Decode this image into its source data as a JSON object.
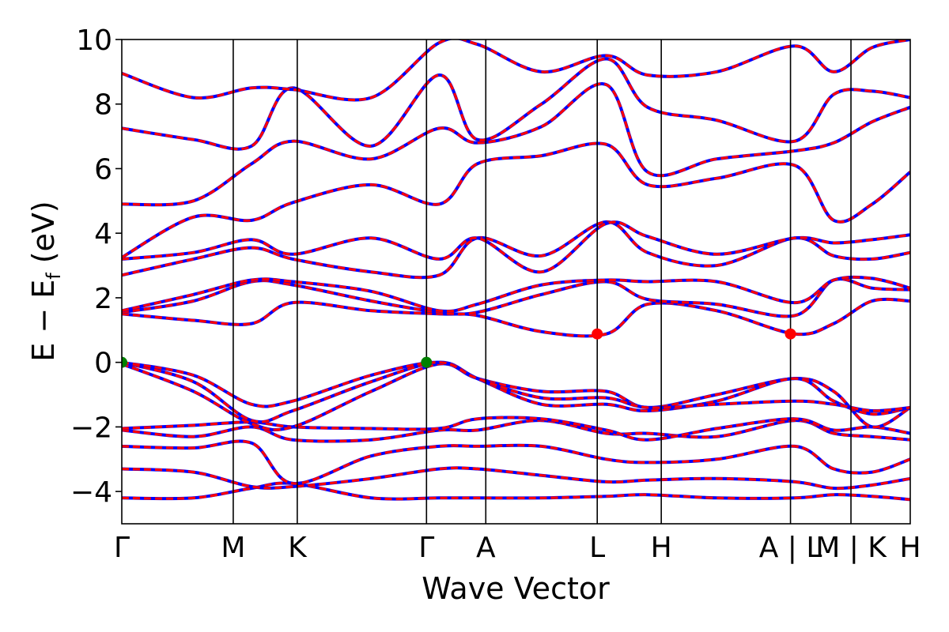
{
  "chart_data": {
    "type": "line",
    "xlabel": "Wave Vector",
    "ylabel": {
      "main": "E − E",
      "subscript": "f",
      "unit": "(eV)"
    },
    "xlim": [
      0,
      6.65
    ],
    "ylim": [
      -5,
      10
    ],
    "y_ticks": [
      -4,
      -2,
      0,
      2,
      4,
      6,
      8,
      10
    ],
    "y_tick_labels": [
      "−4",
      "−2",
      "0",
      "2",
      "4",
      "6",
      "8",
      "10"
    ],
    "k_points": [
      {
        "label": "Γ",
        "x": 0.0
      },
      {
        "label": "M",
        "x": 0.94
      },
      {
        "label": "K",
        "x": 1.48
      },
      {
        "label": "Γ",
        "x": 2.57
      },
      {
        "label": "A",
        "x": 3.07
      },
      {
        "label": "L",
        "x": 4.01
      },
      {
        "label": "H",
        "x": 4.55
      },
      {
        "label": "A | L",
        "x": 5.64
      },
      {
        "label": "M | K",
        "x": 6.15
      },
      {
        "label": "H",
        "x": 6.65
      }
    ],
    "colors": {
      "band": "#ff0000",
      "overlay": "#0000ff",
      "vbm": "#008000",
      "cbm": "#ff0000",
      "kline": "#000000"
    },
    "markers": [
      {
        "name": "VBM",
        "x": 0.0,
        "y": 0.0,
        "color": "#008000"
      },
      {
        "name": "VBM",
        "x": 2.57,
        "y": 0.0,
        "color": "#008000"
      },
      {
        "name": "CBM",
        "x": 4.01,
        "y": 0.88,
        "color": "#ff0000"
      },
      {
        "name": "CBM",
        "x": 5.64,
        "y": 0.88,
        "color": "#ff0000"
      }
    ],
    "bands": [
      [
        -4.2,
        -4.2,
        -3.9,
        -3.75,
        -4.2,
        -4.2,
        -4.2,
        -4.2,
        -4.15,
        -4.1,
        -4.2,
        -4.2,
        -4.1,
        -4.15,
        -4.25
      ],
      [
        -3.3,
        -3.4,
        -3.85,
        -3.85,
        -3.6,
        -3.3,
        -3.3,
        -3.5,
        -3.7,
        -3.65,
        -3.6,
        -3.7,
        -3.9,
        -3.8,
        -3.6
      ],
      [
        -2.6,
        -2.65,
        -2.5,
        -3.75,
        -2.9,
        -2.6,
        -2.6,
        -2.6,
        -3.0,
        -3.1,
        -3.0,
        -2.6,
        -3.3,
        -3.4,
        -3.0
      ],
      [
        -2.1,
        -2.3,
        -2.0,
        -2.4,
        -2.4,
        -2.1,
        -2.1,
        -1.8,
        -2.2,
        -2.2,
        -2.3,
        -1.8,
        -2.2,
        -2.3,
        -2.4
      ],
      [
        -2.05,
        -1.95,
        -1.85,
        -2.0,
        -2.05,
        -2.05,
        -1.75,
        -1.75,
        -2.1,
        -2.4,
        -2.05,
        -1.75,
        -2.1,
        -2.0,
        -2.2
      ],
      [
        -0.05,
        -0.9,
        -1.9,
        -2.0,
        -0.9,
        -0.05,
        -0.5,
        -0.9,
        -0.9,
        -1.4,
        -1.0,
        -0.5,
        -0.9,
        -2.0,
        -1.4
      ],
      [
        0.0,
        -0.6,
        -1.8,
        -1.5,
        -0.6,
        0.0,
        -0.5,
        -1.3,
        -1.3,
        -1.5,
        -1.2,
        -0.5,
        -1.2,
        -1.6,
        -1.4
      ],
      [
        0.0,
        -0.4,
        -1.3,
        -1.2,
        -0.4,
        0.0,
        -0.5,
        -1.1,
        -1.1,
        -1.4,
        -1.3,
        -1.2,
        -1.3,
        -1.5,
        -1.4
      ],
      [
        1.5,
        1.3,
        1.2,
        1.85,
        1.6,
        1.5,
        1.45,
        0.95,
        0.88,
        1.8,
        1.6,
        0.88,
        1.2,
        1.9,
        1.9
      ],
      [
        1.55,
        1.9,
        2.5,
        2.4,
        1.9,
        1.55,
        1.55,
        2.1,
        2.5,
        1.95,
        1.8,
        1.45,
        2.55,
        2.3,
        2.25
      ],
      [
        1.6,
        2.1,
        2.55,
        2.5,
        2.2,
        1.6,
        1.8,
        2.4,
        2.55,
        2.5,
        2.5,
        1.85,
        2.55,
        2.6,
        2.3
      ],
      [
        2.7,
        3.2,
        3.55,
        3.2,
        2.8,
        2.7,
        3.85,
        3.3,
        4.35,
        3.4,
        3.0,
        3.85,
        3.3,
        3.2,
        3.4
      ],
      [
        3.2,
        3.4,
        3.8,
        3.35,
        3.85,
        3.2,
        3.85,
        2.8,
        4.3,
        3.9,
        3.35,
        3.85,
        3.7,
        3.8,
        3.95
      ],
      [
        3.25,
        4.5,
        4.4,
        4.95,
        5.5,
        4.9,
        6.15,
        6.4,
        6.75,
        5.5,
        5.7,
        6.1,
        4.4,
        4.9,
        5.9
      ],
      [
        4.9,
        5.0,
        6.15,
        6.85,
        6.3,
        7.25,
        6.8,
        7.3,
        8.6,
        5.9,
        6.3,
        6.55,
        6.8,
        7.45,
        7.9
      ],
      [
        7.25,
        6.9,
        6.7,
        8.5,
        6.7,
        8.9,
        6.9,
        8.0,
        9.4,
        7.9,
        7.5,
        6.85,
        8.3,
        8.4,
        8.2
      ],
      [
        8.95,
        8.2,
        8.5,
        8.45,
        8.2,
        9.9,
        9.85,
        9.0,
        9.5,
        8.9,
        9.0,
        9.8,
        9.0,
        9.75,
        10.0
      ]
    ]
  }
}
